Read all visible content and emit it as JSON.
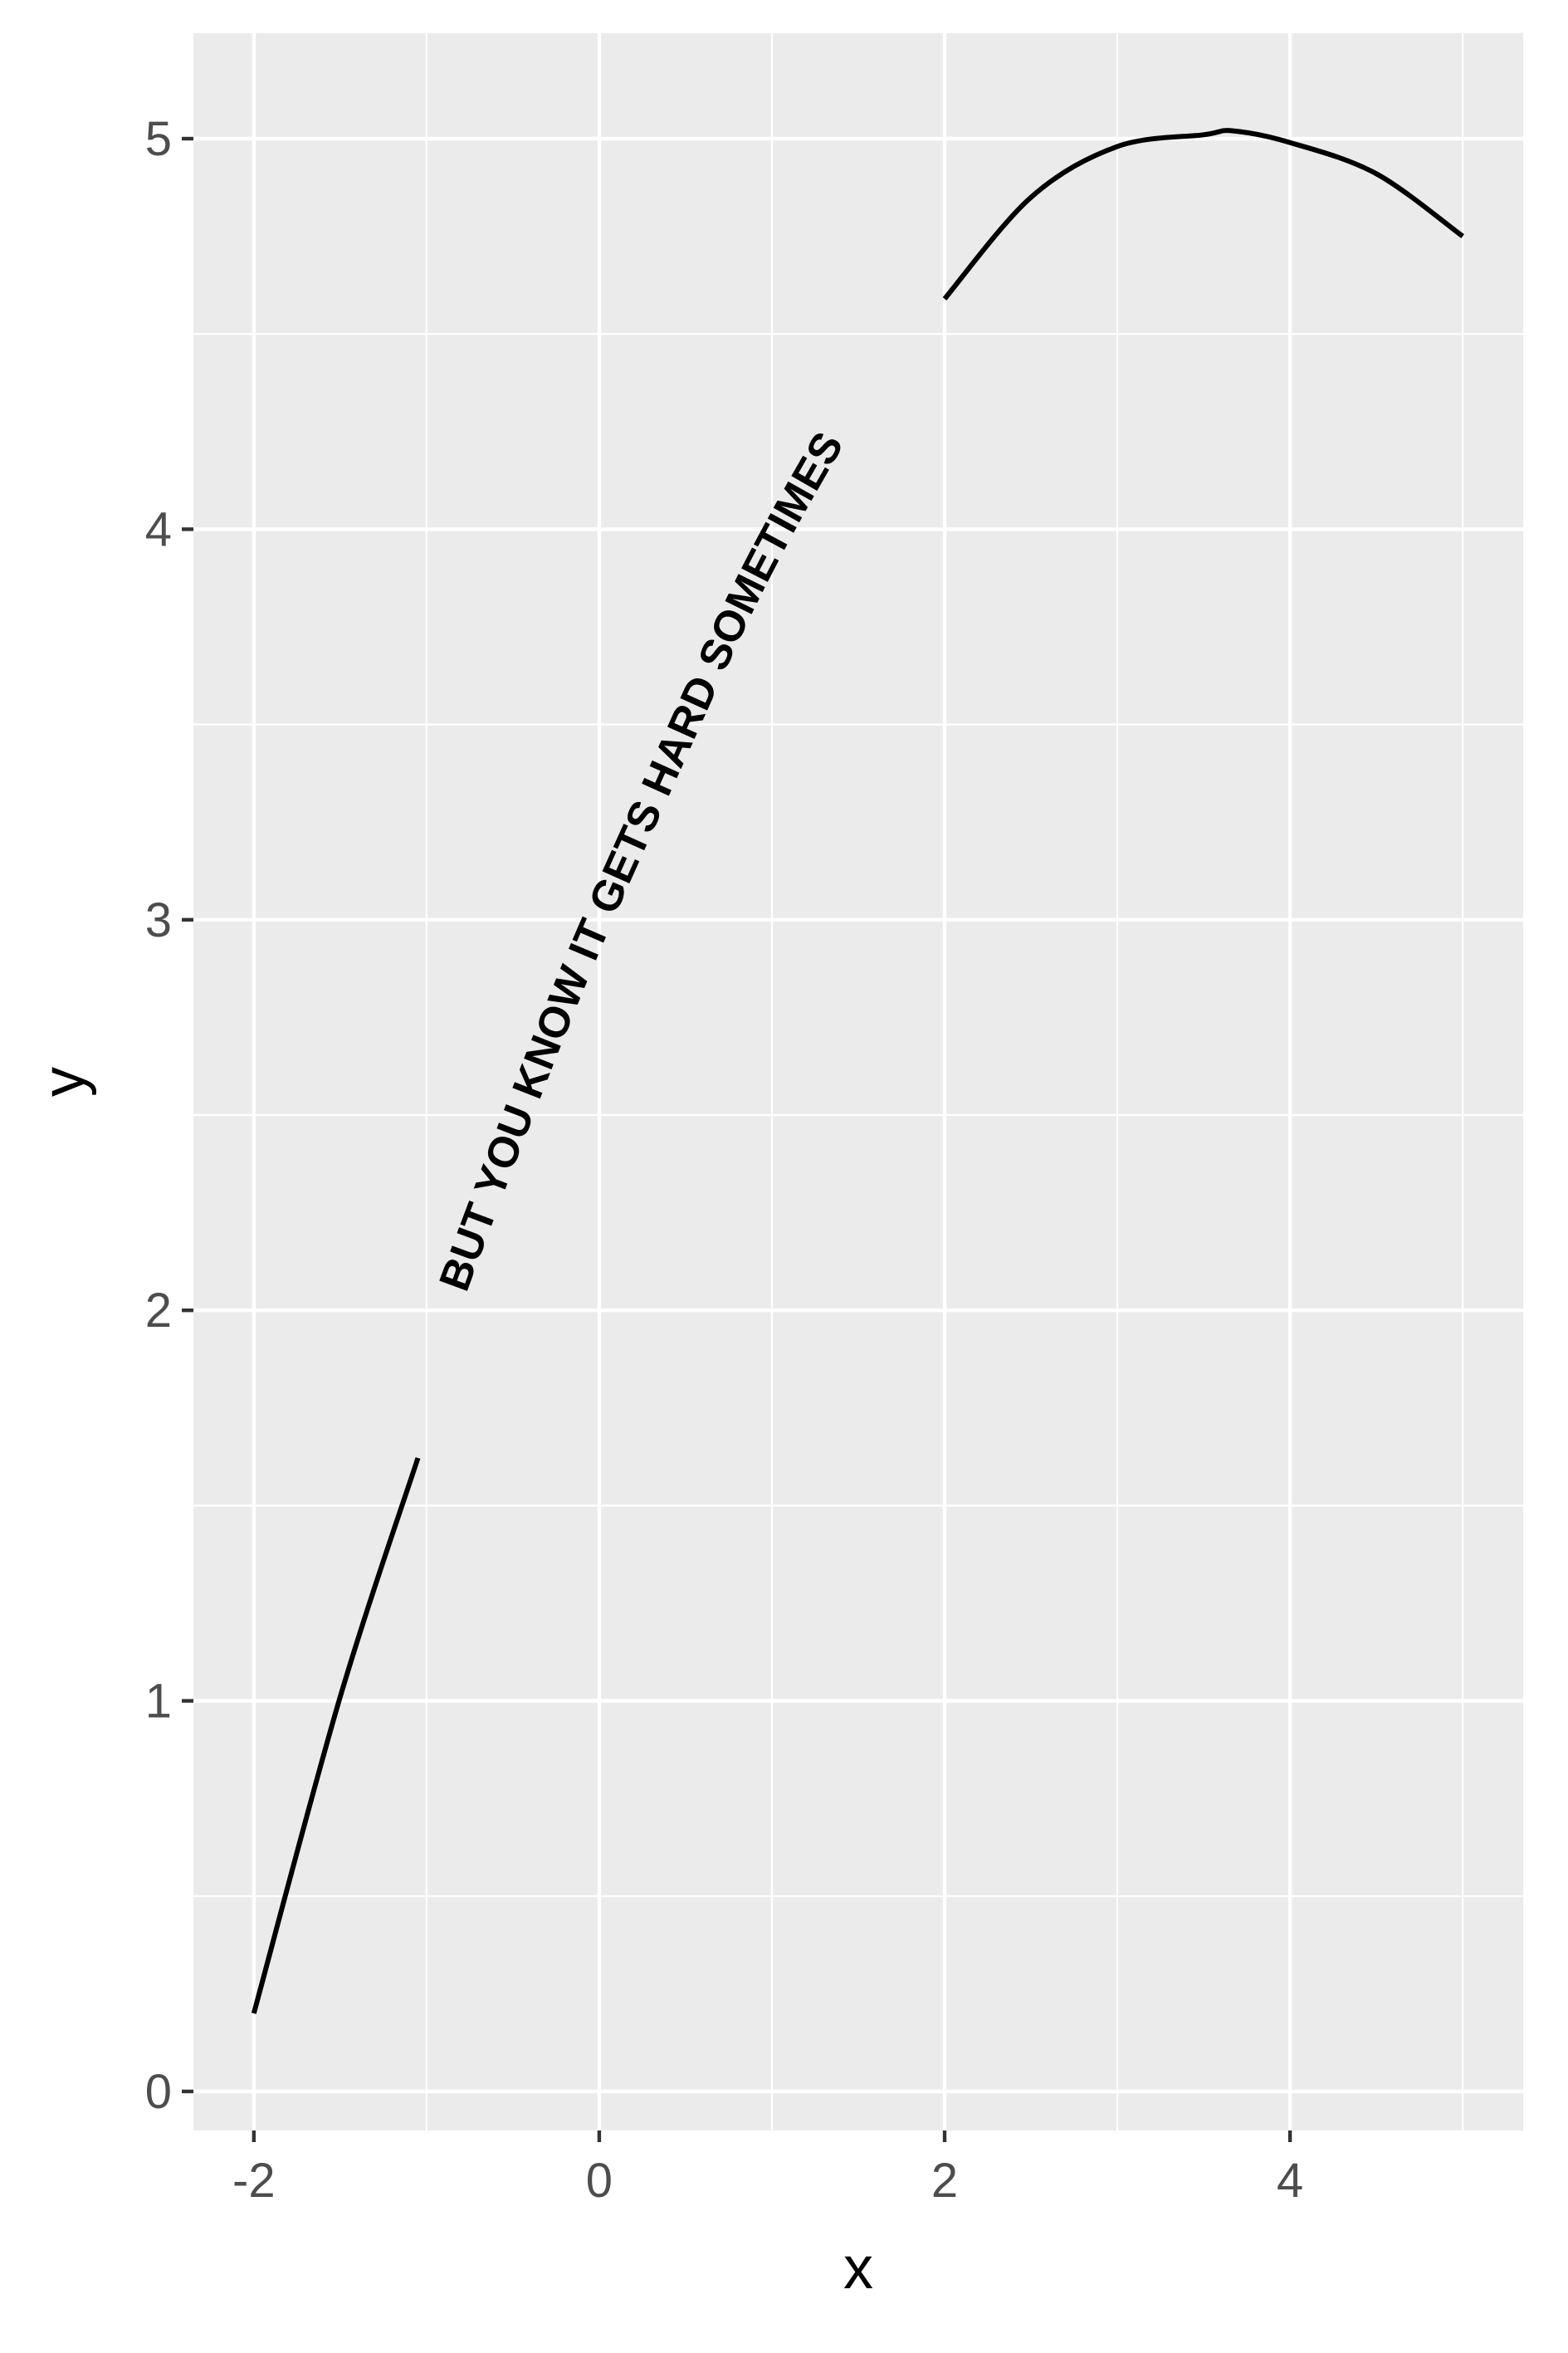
{
  "chart_data": {
    "type": "line",
    "title": "",
    "xlabel": "x",
    "ylabel": "y",
    "xlim": [
      -2.35,
      5.35
    ],
    "ylim": [
      -0.1,
      5.27
    ],
    "x_ticks": [
      -2,
      0,
      2,
      4
    ],
    "x_tick_labels": [
      "-2",
      "0",
      "2",
      "4"
    ],
    "y_ticks": [
      0,
      1,
      2,
      3,
      4,
      5
    ],
    "y_tick_labels": [
      "0",
      "1",
      "2",
      "3",
      "4",
      "5"
    ],
    "x_minor_ticks": [
      -1,
      1,
      3,
      5
    ],
    "y_minor_ticks": [
      0.5,
      1.5,
      2.5,
      3.5,
      4.5
    ],
    "grid": true,
    "legend": "none",
    "series": [
      {
        "x": [
          -2.0,
          -1.5,
          -1.0,
          -0.5,
          0.0,
          0.5,
          1.0,
          1.5,
          2.0,
          2.5,
          3.0,
          3.5,
          3.67,
          4.0,
          4.5,
          5.0
        ],
        "y": [
          0.2,
          1.01,
          1.69,
          2.29,
          2.85,
          3.35,
          3.83,
          4.23,
          4.59,
          4.85,
          4.98,
          5.01,
          5.02,
          4.99,
          4.91,
          4.75
        ],
        "label": "BUT YOU KNOW IT GETS HARD SOMETIMES",
        "label_x_range": [
          -1.05,
          2.0
        ]
      }
    ],
    "colors": {
      "panel_background": "#ebebeb",
      "grid_major": "#ffffff",
      "grid_minor": "#ffffff",
      "line": "#000000",
      "tick_label": "#4d4d4d",
      "axis_title": "#000000"
    }
  }
}
